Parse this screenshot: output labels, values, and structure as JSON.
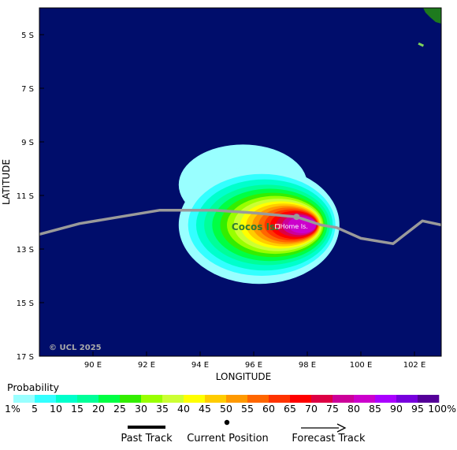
{
  "map": {
    "axes": {
      "xlabel": "LONGITUDE",
      "ylabel": "LATITUDE",
      "xlim": [
        88,
        103
      ],
      "ylim": [
        -17,
        -4
      ],
      "x_ticks": [
        {
          "value": 90,
          "label": "90 E"
        },
        {
          "value": 92,
          "label": "92 E"
        },
        {
          "value": 94,
          "label": "94 E"
        },
        {
          "value": 96,
          "label": "96 E"
        },
        {
          "value": 98,
          "label": "98 E"
        },
        {
          "value": 100,
          "label": "100 E"
        },
        {
          "value": 102,
          "label": "102 E"
        }
      ],
      "y_ticks": [
        {
          "value": -5,
          "label": "5 S"
        },
        {
          "value": -7,
          "label": "7 S"
        },
        {
          "value": -9,
          "label": "9 S"
        },
        {
          "value": -11,
          "label": "11 S"
        },
        {
          "value": -13,
          "label": "13 S"
        },
        {
          "value": -15,
          "label": "15 S"
        },
        {
          "value": -17,
          "label": "17 S"
        }
      ]
    },
    "colors": {
      "ocean": "#000d6b",
      "land": "#1e7a1e",
      "track": "#9a9a9a"
    },
    "credit": "© UCL 2025",
    "places": {
      "cocos_label": "Cocos Is.",
      "home_label": "Home Is."
    },
    "probability_field": {
      "center": {
        "lon": 97.8,
        "lat": -12.1
      },
      "blobs": [
        {
          "lon": 96.2,
          "lat": -12.1,
          "rx": 3.0,
          "ry": 2.2,
          "level": 1
        },
        {
          "lon": 96.3,
          "lat": -12.1,
          "rx": 2.75,
          "ry": 1.9,
          "level": 5
        },
        {
          "lon": 96.4,
          "lat": -12.1,
          "rx": 2.55,
          "ry": 1.7,
          "level": 10
        },
        {
          "lon": 96.5,
          "lat": -12.1,
          "rx": 2.35,
          "ry": 1.5,
          "level": 15
        },
        {
          "lon": 96.6,
          "lat": -12.1,
          "rx": 2.15,
          "ry": 1.35,
          "level": 20
        },
        {
          "lon": 96.7,
          "lat": -12.1,
          "rx": 1.95,
          "ry": 1.2,
          "level": 25
        },
        {
          "lon": 96.8,
          "lat": -12.1,
          "rx": 1.8,
          "ry": 1.08,
          "level": 30
        },
        {
          "lon": 96.9,
          "lat": -12.1,
          "rx": 1.65,
          "ry": 0.98,
          "level": 35
        },
        {
          "lon": 97.0,
          "lat": -12.1,
          "rx": 1.5,
          "ry": 0.88,
          "level": 40
        },
        {
          "lon": 97.1,
          "lat": -12.1,
          "rx": 1.38,
          "ry": 0.8,
          "level": 45
        },
        {
          "lon": 97.2,
          "lat": -12.1,
          "rx": 1.25,
          "ry": 0.72,
          "level": 50
        },
        {
          "lon": 97.3,
          "lat": -12.1,
          "rx": 1.12,
          "ry": 0.65,
          "level": 55
        },
        {
          "lon": 97.4,
          "lat": -12.1,
          "rx": 1.0,
          "ry": 0.58,
          "level": 60
        },
        {
          "lon": 97.5,
          "lat": -12.1,
          "rx": 0.88,
          "ry": 0.52,
          "level": 65
        },
        {
          "lon": 97.6,
          "lat": -12.1,
          "rx": 0.76,
          "ry": 0.45,
          "level": 70
        },
        {
          "lon": 97.7,
          "lat": -12.1,
          "rx": 0.64,
          "ry": 0.38,
          "level": 75
        },
        {
          "lon": 97.8,
          "lat": -12.1,
          "rx": 0.52,
          "ry": 0.31,
          "level": 80
        }
      ],
      "halo": {
        "lon": 95.6,
        "lat": -10.6,
        "rx": 2.4,
        "ry": 1.5
      }
    },
    "track": {
      "points": [
        {
          "lon": 88.0,
          "lat": -12.45
        },
        {
          "lon": 89.5,
          "lat": -12.05
        },
        {
          "lon": 91.0,
          "lat": -11.8
        },
        {
          "lon": 92.5,
          "lat": -11.55
        },
        {
          "lon": 94.5,
          "lat": -11.55
        },
        {
          "lon": 96.0,
          "lat": -11.65
        },
        {
          "lon": 97.6,
          "lat": -11.8
        },
        {
          "lon": 98.5,
          "lat": -12.1
        },
        {
          "lon": 99.1,
          "lat": -12.2
        },
        {
          "lon": 100.0,
          "lat": -12.6
        },
        {
          "lon": 101.2,
          "lat": -12.8
        },
        {
          "lon": 102.3,
          "lat": -11.95
        },
        {
          "lon": 103.0,
          "lat": -12.1
        }
      ],
      "current": {
        "lon": 97.6,
        "lat": -11.8
      }
    },
    "islands": {
      "cocos": {
        "lon": 96.85,
        "lat": -12.15
      },
      "home": {
        "lon": 96.9,
        "lat": -12.2
      }
    }
  },
  "legend": {
    "title": "Probability",
    "colors": [
      "#99ffff",
      "#33ffff",
      "#00ffcc",
      "#00ff99",
      "#00ff44",
      "#33ee00",
      "#99ff00",
      "#ccff33",
      "#ffff00",
      "#ffcc00",
      "#ff9900",
      "#ff6600",
      "#ff3300",
      "#ff0000",
      "#dd0044",
      "#cc0099",
      "#cc00cc",
      "#aa00ff",
      "#7700dd",
      "#550099"
    ],
    "labels": [
      "1%",
      "5",
      "10",
      "15",
      "20",
      "25",
      "30",
      "35",
      "40",
      "45",
      "50",
      "55",
      "60",
      "65",
      "70",
      "75",
      "80",
      "85",
      "90",
      "95",
      "100%"
    ]
  },
  "key": {
    "past_track": "Past Track",
    "current_position": "Current Position",
    "forecast_track": "Forecast Track"
  }
}
